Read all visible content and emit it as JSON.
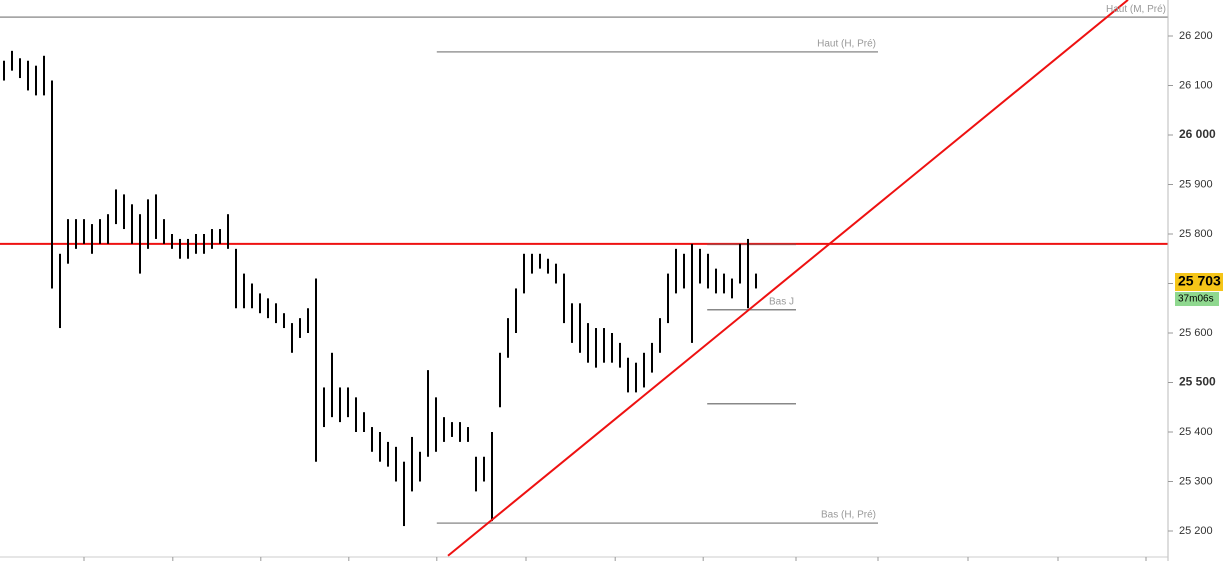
{
  "chart_data": {
    "type": "ohlc",
    "x": [
      0,
      1,
      2,
      3,
      4,
      5,
      6,
      7,
      8,
      9,
      10,
      11,
      12,
      13,
      14,
      15,
      16,
      17,
      18,
      19,
      20,
      21,
      22,
      23,
      24,
      25,
      26,
      27,
      28,
      29,
      30,
      31,
      32,
      33,
      34,
      35,
      36,
      37,
      38,
      39,
      40,
      41,
      42,
      43,
      44,
      45,
      46,
      47,
      48,
      49,
      50,
      51,
      52,
      53,
      54,
      55,
      56,
      57,
      58,
      59,
      60,
      61,
      62,
      63,
      64,
      65,
      66,
      67,
      68,
      69,
      70,
      71,
      72,
      73,
      74,
      75,
      76,
      77,
      78,
      79,
      80,
      81,
      82,
      83,
      84,
      85,
      86,
      87,
      88,
      89,
      90,
      91,
      92,
      93,
      94
    ],
    "high": [
      26150,
      26170,
      26155,
      26150,
      26140,
      26160,
      26110,
      25760,
      25830,
      25830,
      25830,
      25820,
      25830,
      25840,
      25890,
      25880,
      25860,
      25840,
      25870,
      25880,
      25830,
      25800,
      25790,
      25790,
      25800,
      25800,
      25810,
      25810,
      25840,
      25770,
      25720,
      25700,
      25680,
      25670,
      25660,
      25640,
      25620,
      25630,
      25650,
      25710,
      25490,
      25560,
      25490,
      25490,
      25470,
      25440,
      25410,
      25400,
      25380,
      25370,
      25340,
      25390,
      25360,
      25525,
      25470,
      25430,
      25420,
      25420,
      25410,
      25350,
      25350,
      25400,
      25560,
      25630,
      25690,
      25760,
      25760,
      25760,
      25750,
      25740,
      25720,
      25660,
      25660,
      25620,
      25610,
      25610,
      25600,
      25580,
      25550,
      25540,
      25560,
      25580,
      25630,
      25720,
      25770,
      25760,
      25780,
      25770,
      25760,
      25730,
      25720,
      25710,
      25780,
      25790,
      25720
    ],
    "low": [
      26110,
      26130,
      26115,
      26090,
      26080,
      26080,
      25690,
      25610,
      25740,
      25770,
      25780,
      25760,
      25780,
      25780,
      25820,
      25810,
      25780,
      25720,
      25770,
      25790,
      25780,
      25770,
      25750,
      25750,
      25760,
      25760,
      25770,
      25780,
      25770,
      25650,
      25650,
      25650,
      25640,
      25630,
      25620,
      25610,
      25560,
      25590,
      25600,
      25340,
      25410,
      25430,
      25420,
      25430,
      25400,
      25400,
      25360,
      25340,
      25330,
      25300,
      25210,
      25280,
      25300,
      25350,
      25360,
      25380,
      25390,
      25380,
      25380,
      25280,
      25300,
      25220,
      25450,
      25550,
      25600,
      25680,
      25720,
      25730,
      25720,
      25700,
      25620,
      25580,
      25560,
      25540,
      25530,
      25540,
      25540,
      25530,
      25480,
      25480,
      25490,
      25520,
      25560,
      25620,
      25680,
      25690,
      25580,
      25700,
      25690,
      25680,
      25680,
      25670,
      25700,
      25650,
      25690
    ],
    "color": "#000000",
    "xlim": [
      -0.5,
      145.5
    ],
    "xticks": [
      10,
      21.1,
      32.1,
      43.1,
      54.1,
      65.25,
      76.4,
      87.4,
      99,
      109.25,
      120.5,
      131.75,
      142.75
    ],
    "ylim": [
      25139.4,
      26272.7
    ],
    "yticks": [
      {
        "value": 26200,
        "label": "26 200"
      },
      {
        "value": 26100,
        "label": "26 100"
      },
      {
        "value": 26000,
        "label": "26 000"
      },
      {
        "value": 25900,
        "label": "25 900"
      },
      {
        "value": 25800,
        "label": "25 800"
      },
      {
        "value": 25700,
        "label": "25 700"
      },
      {
        "value": 25600,
        "label": "25 600"
      },
      {
        "value": 25500,
        "label": "25 500"
      },
      {
        "value": 25400,
        "label": "25 400"
      },
      {
        "value": 25300,
        "label": "25 300"
      },
      {
        "value": 25200,
        "label": "25 200"
      }
    ],
    "bold_ticks": [
      26000,
      25500
    ],
    "levels": [
      {
        "label": "Haut (M, Pré)",
        "value": 26238,
        "x": [
          -0.5,
          145.5
        ],
        "color": "#999999"
      },
      {
        "label": "Haut (H, Pré)",
        "value": 26168,
        "x": [
          54.1,
          109.25
        ],
        "color": "#999999"
      },
      {
        "label": "Bas J",
        "value": 25647,
        "x": [
          87.9,
          99
        ],
        "color": "#888888"
      },
      {
        "value": 25457,
        "x": [
          87.9,
          99
        ],
        "color": "#888888"
      },
      {
        "label": "Bas (H, Pré)",
        "value": 25216,
        "x": [
          54.1,
          109.25
        ],
        "color": "#999999"
      },
      {
        "value": 25780,
        "x": [
          -0.5,
          145.5
        ],
        "color": "#ee1111"
      },
      {
        "value": 25779,
        "x": [
          87.9,
          99
        ],
        "color": "#aa4444"
      }
    ],
    "trendline": {
      "x": [
        55.5,
        140.5
      ],
      "values": [
        25150,
        26273
      ],
      "color": "#ee1111"
    },
    "last_price": {
      "value": 25703,
      "label": "25 703",
      "color": "#f5c518"
    },
    "countdown": {
      "label": "37m06s",
      "color": "#8fd88f"
    }
  }
}
